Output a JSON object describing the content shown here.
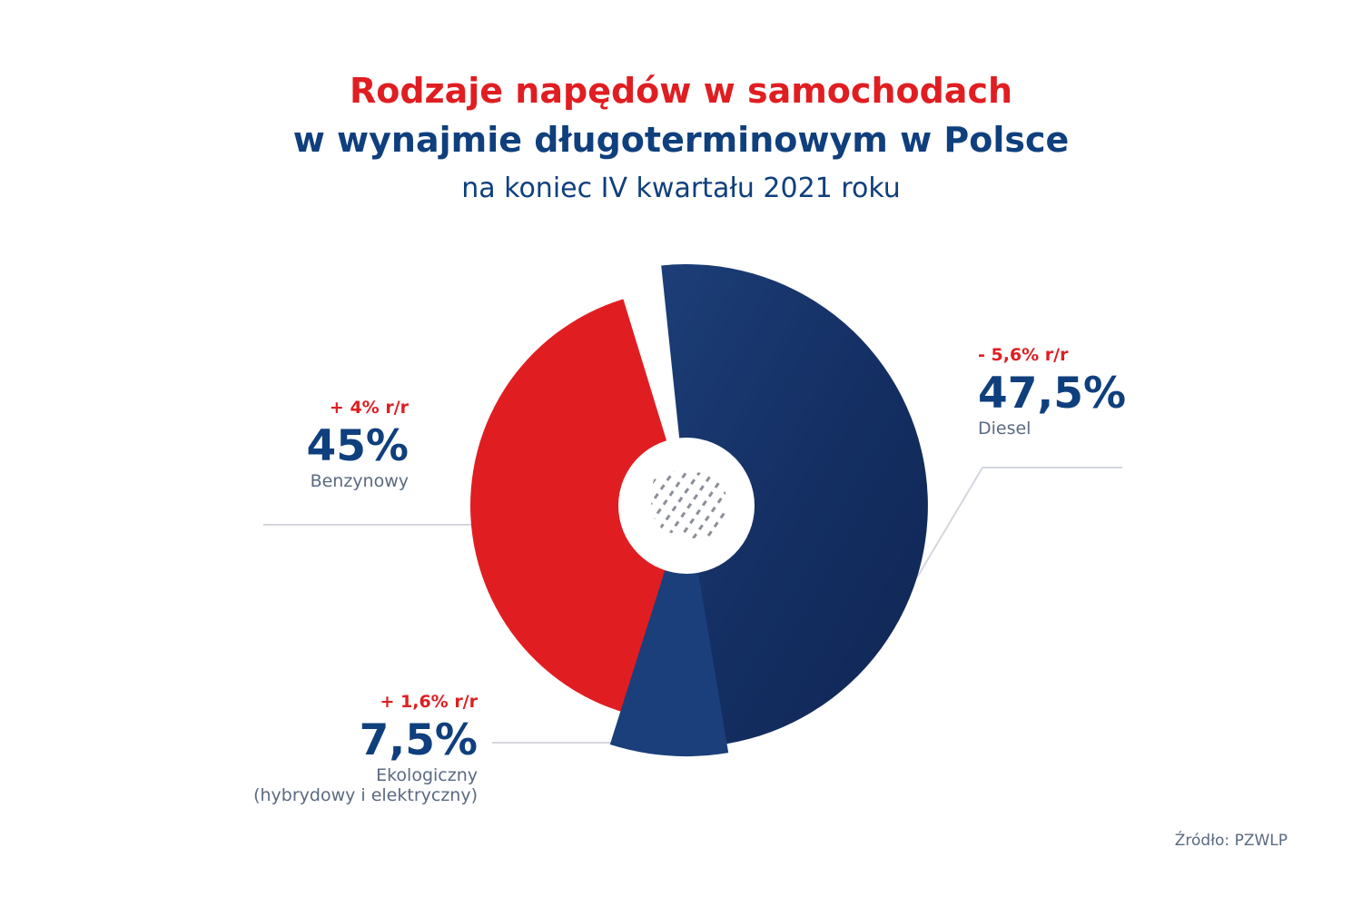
{
  "header": {
    "title_line1": "Rodzaje napędów w samochodach",
    "title_line2": "w wynajmie długoterminowym w Polsce",
    "subtitle": "na koniec IV kwartału 2021 roku"
  },
  "colors": {
    "red": "#e01e22",
    "navy": "#0f3f7d",
    "dark_navy": "#102b5c",
    "leader_line": "#d4d7de"
  },
  "chart_data": {
    "type": "pie",
    "title": "Rodzaje napędów w samochodach w wynajmie długoterminowym w Polsce",
    "subtitle": "na koniec IV kwartału 2021 roku",
    "unit": "%",
    "slices": [
      {
        "name": "Benzynowy",
        "value": 45,
        "value_label": "45%",
        "change_label": "+ 4% r/r",
        "color": "#e01e22"
      },
      {
        "name": "Diesel",
        "value": 47.5,
        "value_label": "47,5%",
        "change_label": "- 5,6% r/r",
        "color": "#102b5c"
      },
      {
        "name": "Ekologiczny",
        "name_line2": "(hybrydowy i elektryczny)",
        "value": 7.5,
        "value_label": "7,5%",
        "change_label": "+ 1,6% r/r",
        "color": "#1b3f7a"
      }
    ],
    "center_icon": "poland-map-icon"
  },
  "source": "Źródło: PZWLP"
}
